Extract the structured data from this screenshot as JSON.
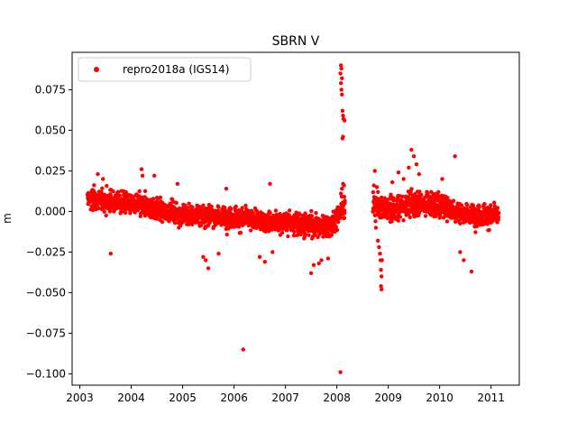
{
  "chart_data": {
    "type": "scatter",
    "title": "SBRN V",
    "xlabel": "",
    "ylabel": "m",
    "xlim": [
      2002.85,
      2011.55
    ],
    "ylim": [
      -0.107,
      0.098
    ],
    "x_ticks": [
      "2003",
      "2004",
      "2005",
      "2006",
      "2007",
      "2008",
      "2009",
      "2010",
      "2011"
    ],
    "y_ticks": [
      "0.075",
      "0.050",
      "0.025",
      "0.000",
      "−0.025",
      "−0.050",
      "−0.075",
      "−0.100"
    ],
    "grid": false,
    "legend_position": "top-left",
    "series": [
      {
        "name": "repro2018a (IGS14)",
        "color": "#ff0000",
        "marker": "circle",
        "trend": [
          [
            2003.15,
            0.008
          ],
          [
            2004.0,
            0.005
          ],
          [
            2005.0,
            -0.002
          ],
          [
            2006.0,
            -0.004
          ],
          [
            2007.0,
            -0.007
          ],
          [
            2007.9,
            -0.009
          ],
          [
            2008.1,
            0.002
          ],
          [
            2008.7,
            0.004
          ],
          [
            2009.0,
            0.001
          ],
          [
            2009.5,
            0.005
          ],
          [
            2010.0,
            0.004
          ],
          [
            2010.5,
            -0.002
          ],
          [
            2011.15,
            -0.003
          ]
        ],
        "points_outliers": [
          [
            2006.18,
            -0.085
          ],
          [
            2008.07,
            -0.099
          ],
          [
            2008.08,
            0.09
          ],
          [
            2008.09,
            0.088
          ],
          [
            2008.07,
            0.085
          ],
          [
            2008.1,
            0.082
          ],
          [
            2008.08,
            0.079
          ],
          [
            2008.09,
            0.075
          ],
          [
            2008.1,
            0.072
          ],
          [
            2008.11,
            0.062
          ],
          [
            2008.12,
            0.059
          ],
          [
            2008.13,
            0.057
          ],
          [
            2008.15,
            0.056
          ],
          [
            2008.12,
            0.046
          ],
          [
            2008.11,
            0.045
          ],
          [
            2008.12,
            0.017
          ],
          [
            2008.1,
            0.014
          ],
          [
            2008.08,
            0.011
          ],
          [
            2008.14,
            0.016
          ],
          [
            2008.72,
            0.016
          ],
          [
            2008.78,
            0.015
          ],
          [
            2008.8,
            0.012
          ],
          [
            2008.74,
            0.025
          ],
          [
            2008.76,
            -0.01
          ],
          [
            2008.8,
            -0.018
          ],
          [
            2008.82,
            -0.022
          ],
          [
            2008.84,
            -0.026
          ],
          [
            2008.85,
            -0.03
          ],
          [
            2008.86,
            -0.036
          ],
          [
            2008.87,
            -0.04
          ],
          [
            2008.86,
            -0.046
          ],
          [
            2008.87,
            -0.048
          ],
          [
            2008.88,
            -0.03
          ],
          [
            2009.45,
            0.038
          ],
          [
            2009.5,
            0.034
          ],
          [
            2009.55,
            0.029
          ],
          [
            2009.4,
            0.027
          ],
          [
            2009.6,
            0.023
          ],
          [
            2009.2,
            0.024
          ],
          [
            2009.3,
            0.02
          ],
          [
            2009.08,
            0.018
          ],
          [
            2010.3,
            0.034
          ],
          [
            2010.05,
            0.02
          ],
          [
            2010.62,
            -0.037
          ],
          [
            2010.47,
            -0.03
          ],
          [
            2010.4,
            -0.025
          ],
          [
            2007.5,
            -0.038
          ],
          [
            2007.55,
            -0.033
          ],
          [
            2007.65,
            -0.032
          ],
          [
            2007.7,
            -0.03
          ],
          [
            2007.83,
            -0.029
          ],
          [
            2005.5,
            -0.035
          ],
          [
            2005.45,
            -0.03
          ],
          [
            2005.4,
            -0.028
          ],
          [
            2005.7,
            -0.026
          ],
          [
            2003.6,
            -0.026
          ],
          [
            2004.45,
            0.022
          ],
          [
            2004.2,
            0.026
          ],
          [
            2004.22,
            0.022
          ],
          [
            2003.35,
            0.023
          ],
          [
            2003.45,
            0.02
          ],
          [
            2006.5,
            -0.028
          ],
          [
            2006.6,
            -0.031
          ],
          [
            2006.75,
            -0.025
          ],
          [
            2005.85,
            0.014
          ],
          [
            2006.7,
            0.017
          ],
          [
            2004.9,
            0.017
          ]
        ]
      }
    ]
  }
}
